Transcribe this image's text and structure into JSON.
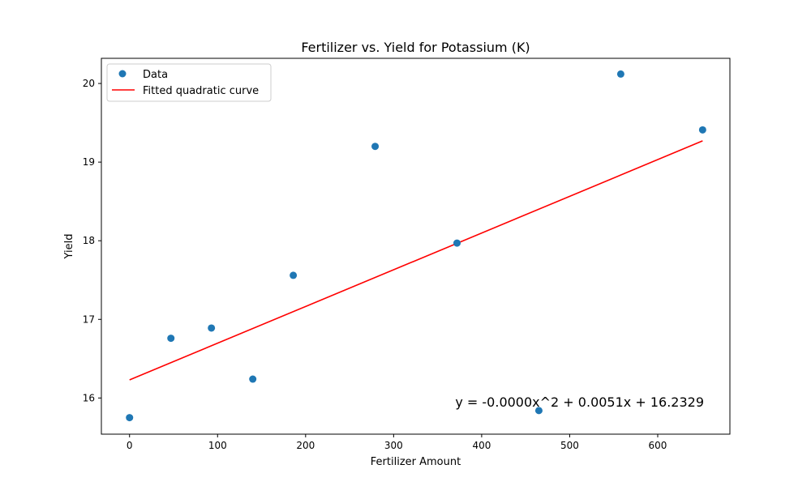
{
  "chart_data": {
    "type": "scatter",
    "title": "Fertilizer vs. Yield for Potassium (K)",
    "xlabel": "Fertilizer Amount",
    "ylabel": "Yield",
    "xlim": [
      -32,
      682
    ],
    "ylim": [
      15.54,
      20.32
    ],
    "xticks": [
      0,
      100,
      200,
      300,
      400,
      500,
      600
    ],
    "yticks": [
      16,
      17,
      18,
      19,
      20
    ],
    "grid": false,
    "legend_position": "top-left",
    "series": [
      {
        "name": "Data",
        "kind": "scatter",
        "color": "#1f77b4",
        "x": [
          0,
          47,
          93,
          140,
          186,
          279,
          372,
          465,
          558,
          651
        ],
        "y": [
          15.75,
          16.76,
          16.89,
          16.24,
          17.56,
          19.2,
          17.97,
          15.84,
          20.12,
          19.41
        ]
      },
      {
        "name": "Fitted quadratic curve",
        "kind": "line",
        "color": "#ff0000",
        "x": [
          0,
          651
        ],
        "y": [
          16.23,
          19.27
        ]
      }
    ],
    "annotation": "y = -0.0000x^2 + 0.0051x + 16.2329"
  }
}
